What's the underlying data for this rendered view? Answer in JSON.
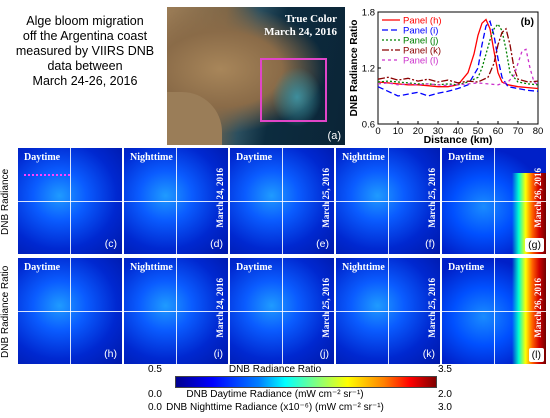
{
  "title_lines": [
    "Alge bloom migration",
    "off the Argentina coast",
    "measured by VIIRS DNB",
    "data between",
    "March 24-26, 2016"
  ],
  "sat": {
    "tc_line1": "True Color",
    "tc_line2": "March 24, 2016",
    "label": "(a)"
  },
  "chart_data": {
    "type": "line",
    "panel_label": "(b)",
    "xlabel": "Distance (km)",
    "ylabel": "DNB Radiance Ratio",
    "xlim": [
      0,
      80
    ],
    "ylim": [
      0.6,
      1.8
    ],
    "xticks": [
      0,
      10,
      20,
      30,
      40,
      50,
      60,
      70,
      80
    ],
    "yticks": [
      0.6,
      1.2,
      1.8
    ],
    "legend_position": "top-right",
    "series": [
      {
        "name": "Panel (h)",
        "color": "#ff0000",
        "dash": "",
        "x": [
          0,
          5,
          10,
          15,
          20,
          25,
          30,
          35,
          40,
          45,
          48,
          50,
          52,
          54,
          56,
          58,
          60,
          62,
          65,
          70,
          75,
          80
        ],
        "y": [
          1.05,
          1.04,
          1.03,
          1.02,
          1.02,
          1.01,
          1.0,
          1.0,
          1.02,
          1.15,
          1.35,
          1.55,
          1.68,
          1.72,
          1.62,
          1.38,
          1.15,
          1.05,
          1.02,
          1.0,
          0.99,
          0.98
        ]
      },
      {
        "name": "Panel (i)",
        "color": "#0000ff",
        "dash": "6,3",
        "x": [
          0,
          5,
          10,
          15,
          20,
          25,
          30,
          35,
          40,
          45,
          50,
          52,
          54,
          56,
          58,
          60,
          62,
          65,
          70,
          75,
          80
        ],
        "y": [
          1.0,
          0.95,
          0.9,
          0.92,
          0.94,
          0.9,
          0.93,
          0.95,
          0.98,
          1.02,
          1.2,
          1.45,
          1.65,
          1.7,
          1.55,
          1.3,
          1.1,
          1.0,
          0.98,
          0.96,
          0.95
        ]
      },
      {
        "name": "Panel (j)",
        "color": "#008000",
        "dash": "2,2",
        "x": [
          0,
          5,
          10,
          15,
          20,
          25,
          30,
          35,
          40,
          45,
          50,
          52,
          54,
          56,
          58,
          60,
          62,
          64,
          66,
          70,
          75,
          80
        ],
        "y": [
          1.05,
          1.06,
          1.05,
          1.04,
          1.03,
          1.03,
          1.02,
          1.03,
          1.02,
          1.05,
          1.1,
          1.2,
          1.35,
          1.5,
          1.62,
          1.67,
          1.6,
          1.4,
          1.15,
          1.05,
          1.03,
          1.02
        ]
      },
      {
        "name": "Panel (k)",
        "color": "#8b0000",
        "dash": "7,2,2,2",
        "x": [
          0,
          5,
          10,
          15,
          20,
          25,
          30,
          35,
          40,
          45,
          50,
          55,
          58,
          60,
          62,
          64,
          66,
          68,
          70,
          75,
          80
        ],
        "y": [
          1.08,
          1.1,
          1.07,
          1.09,
          1.06,
          1.08,
          1.05,
          1.07,
          1.04,
          1.06,
          1.05,
          1.1,
          1.25,
          1.45,
          1.58,
          1.62,
          1.45,
          1.2,
          1.08,
          1.05,
          1.06
        ]
      },
      {
        "name": "Panel (l)",
        "color": "#cc33cc",
        "dash": "3,3",
        "x": [
          0,
          5,
          10,
          15,
          20,
          25,
          30,
          35,
          40,
          45,
          50,
          55,
          60,
          65,
          68,
          70,
          72,
          74,
          76,
          78,
          80
        ],
        "y": [
          1.03,
          1.04,
          1.02,
          1.03,
          1.02,
          1.03,
          1.02,
          1.01,
          1.02,
          1.03,
          1.04,
          1.03,
          1.02,
          1.05,
          1.12,
          1.25,
          1.38,
          1.4,
          1.2,
          1.05,
          1.02
        ]
      }
    ]
  },
  "row_labels": [
    "DNB Radiance",
    "DNB Radiance Ratio"
  ],
  "panels": [
    {
      "title": "Daytime",
      "date": "",
      "label": "(c)"
    },
    {
      "title": "Nighttime",
      "date": "March 24, 2016",
      "label": "(d)"
    },
    {
      "title": "Daytime",
      "date": "March 25, 2016",
      "label": "(e)"
    },
    {
      "title": "Nighttime",
      "date": "March 25, 2016",
      "label": "(f)"
    },
    {
      "title": "Daytime",
      "date": "March 26, 2016",
      "label": "(g)"
    },
    {
      "title": "Daytime",
      "date": "",
      "label": "(h)"
    },
    {
      "title": "Nighttime",
      "date": "March 24, 2016",
      "label": "(i)"
    },
    {
      "title": "Daytime",
      "date": "March 25, 2016",
      "label": "(j)"
    },
    {
      "title": "Nighttime",
      "date": "March 25, 2016",
      "label": "(k)"
    },
    {
      "title": "Daytime",
      "date": "March 26, 2016",
      "label": "(l)"
    }
  ],
  "colorbar": {
    "ratio_label": "DNB Radiance Ratio",
    "ratio_min": "0.5",
    "ratio_max": "3.5",
    "day_label": "DNB Daytime Radiance (mW cm⁻² sr⁻¹)",
    "day_min": "0.0",
    "day_max": "2.0",
    "night_label": "DNB Nighttime Radiance (x10⁻⁶) (mW cm⁻² sr⁻¹)",
    "night_min": "0.0",
    "night_max": "3.0"
  }
}
